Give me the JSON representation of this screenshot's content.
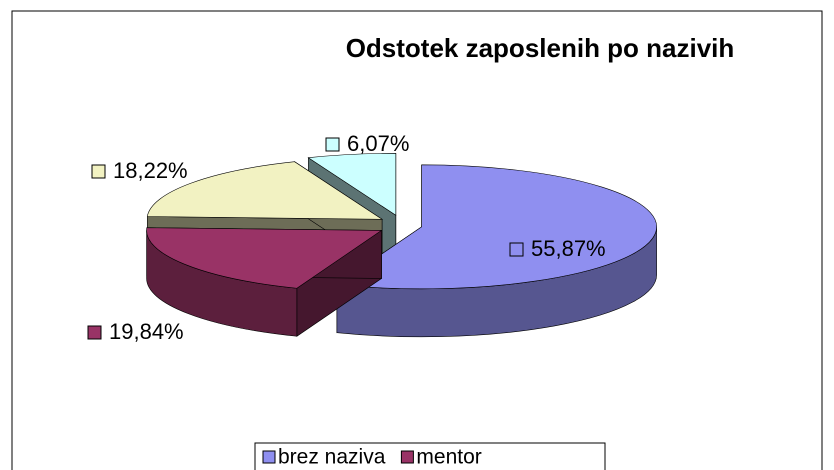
{
  "chart_data": {
    "type": "pie",
    "title": "Odstotek zaposlenih po nazivih",
    "categories": [
      "brez naziva",
      "mentor",
      null,
      null
    ],
    "values": [
      55.87,
      19.84,
      18.22,
      6.07
    ],
    "value_labels": [
      "55,87%",
      "19,84%",
      "18,22%",
      "6,07%"
    ],
    "colors": [
      "#8f8ff0",
      "#993366",
      "#f2f2c2",
      "#ccffff"
    ],
    "legend": "bottom"
  }
}
